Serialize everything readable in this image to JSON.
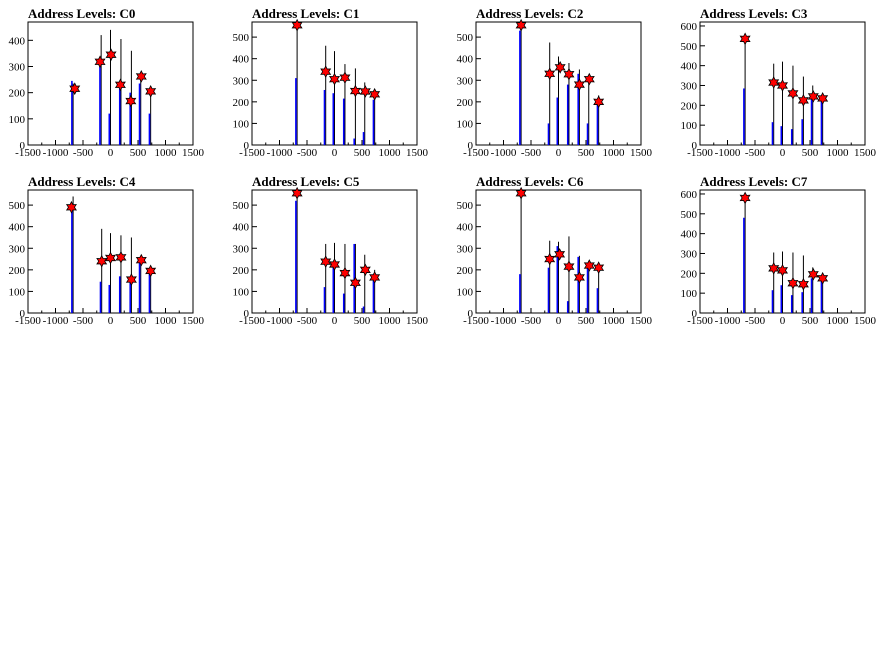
{
  "chart_data": [
    {
      "type": "bar",
      "title": "Address Levels: C0",
      "xlim": [
        -1500,
        1500
      ],
      "ylim": [
        0,
        470
      ],
      "xticks": [
        -1500,
        -1000,
        -500,
        0,
        500,
        1000,
        1500
      ],
      "xtick_labels": [
        "-1500",
        "-1000",
        "-500",
        "0",
        "500",
        "1000",
        "1500"
      ],
      "yticks": [
        0,
        100,
        200,
        300,
        400
      ],
      "ytick_labels": [
        "0",
        "100",
        "200",
        "300",
        "400"
      ],
      "spikes": [
        {
          "x": -680,
          "blue": 245,
          "black": 235
        },
        {
          "x": -170,
          "blue": 300,
          "black": 420
        },
        {
          "x": 0,
          "blue": 120,
          "black": 440
        },
        {
          "x": 190,
          "blue": 215,
          "black": 405
        },
        {
          "x": 380,
          "blue": 200,
          "black": 360
        },
        {
          "x": 550,
          "blue": 235,
          "black": 270
        },
        {
          "x": 730,
          "blue": 120,
          "black": 205
        }
      ],
      "markers": [
        {
          "x": -650,
          "y": 215
        },
        {
          "x": -190,
          "y": 318
        },
        {
          "x": 10,
          "y": 345
        },
        {
          "x": 180,
          "y": 230
        },
        {
          "x": 370,
          "y": 168
        },
        {
          "x": 560,
          "y": 262
        },
        {
          "x": 730,
          "y": 205
        }
      ]
    },
    {
      "type": "bar",
      "title": "Address Levels: C1",
      "xlim": [
        -1500,
        1500
      ],
      "ylim": [
        0,
        570
      ],
      "xticks": [
        -1500,
        -1000,
        -500,
        0,
        500,
        1000,
        1500
      ],
      "xtick_labels": [
        "-1500",
        "-1000",
        "-500",
        "0",
        "500",
        "1000",
        "1500"
      ],
      "yticks": [
        0,
        100,
        200,
        300,
        400,
        500
      ],
      "ytick_labels": [
        "0",
        "100",
        "200",
        "300",
        "400",
        "500"
      ],
      "spikes": [
        {
          "x": -680,
          "blue": 310,
          "black": 560
        },
        {
          "x": -160,
          "blue": 255,
          "black": 460
        },
        {
          "x": 0,
          "blue": 240,
          "black": 435
        },
        {
          "x": 190,
          "blue": 215,
          "black": 375
        },
        {
          "x": 380,
          "blue": 30,
          "black": 355
        },
        {
          "x": 550,
          "blue": 60,
          "black": 290
        },
        {
          "x": 730,
          "blue": 210,
          "black": 240
        }
      ],
      "markers": [
        {
          "x": -680,
          "y": 555
        },
        {
          "x": -160,
          "y": 340
        },
        {
          "x": 0,
          "y": 305
        },
        {
          "x": 190,
          "y": 312
        },
        {
          "x": 380,
          "y": 250
        },
        {
          "x": 560,
          "y": 248
        },
        {
          "x": 730,
          "y": 235
        }
      ]
    },
    {
      "type": "bar",
      "title": "Address Levels: C2",
      "xlim": [
        -1500,
        1500
      ],
      "ylim": [
        0,
        570
      ],
      "xticks": [
        -1500,
        -1000,
        -500,
        0,
        500,
        1000,
        1500
      ],
      "xtick_labels": [
        "-1500",
        "-1000",
        "-500",
        "0",
        "500",
        "1000",
        "1500"
      ],
      "yticks": [
        0,
        100,
        200,
        300,
        400,
        500
      ],
      "ytick_labels": [
        "0",
        "100",
        "200",
        "300",
        "400",
        "500"
      ],
      "spikes": [
        {
          "x": -680,
          "blue": 530,
          "black": 560
        },
        {
          "x": -160,
          "blue": 100,
          "black": 475
        },
        {
          "x": 0,
          "blue": 220,
          "black": 410
        },
        {
          "x": 190,
          "blue": 280,
          "black": 380
        },
        {
          "x": 380,
          "blue": 330,
          "black": 350
        },
        {
          "x": 550,
          "blue": 100,
          "black": 320
        },
        {
          "x": 730,
          "blue": 210,
          "black": 230
        }
      ],
      "markers": [
        {
          "x": -680,
          "y": 555
        },
        {
          "x": -160,
          "y": 330
        },
        {
          "x": 30,
          "y": 360
        },
        {
          "x": 190,
          "y": 328
        },
        {
          "x": 380,
          "y": 280
        },
        {
          "x": 560,
          "y": 305
        },
        {
          "x": 730,
          "y": 200
        }
      ]
    },
    {
      "type": "bar",
      "title": "Address Levels: C3",
      "xlim": [
        -1500,
        1500
      ],
      "ylim": [
        0,
        620
      ],
      "xticks": [
        -1500,
        -1000,
        -500,
        0,
        500,
        1000,
        1500
      ],
      "xtick_labels": [
        "-1500",
        "-1000",
        "-500",
        "0",
        "500",
        "1000",
        "1500"
      ],
      "yticks": [
        0,
        100,
        200,
        300,
        400,
        500,
        600
      ],
      "ytick_labels": [
        "0",
        "100",
        "200",
        "300",
        "400",
        "500",
        "600"
      ],
      "spikes": [
        {
          "x": -680,
          "blue": 285,
          "black": 560
        },
        {
          "x": -160,
          "blue": 115,
          "black": 410
        },
        {
          "x": 0,
          "blue": 95,
          "black": 420
        },
        {
          "x": 190,
          "blue": 80,
          "black": 400
        },
        {
          "x": 380,
          "blue": 130,
          "black": 345
        },
        {
          "x": 550,
          "blue": 240,
          "black": 300
        },
        {
          "x": 730,
          "blue": 240,
          "black": 245
        }
      ],
      "markers": [
        {
          "x": -680,
          "y": 535
        },
        {
          "x": -160,
          "y": 315
        },
        {
          "x": 0,
          "y": 300
        },
        {
          "x": 190,
          "y": 260
        },
        {
          "x": 380,
          "y": 225
        },
        {
          "x": 560,
          "y": 245
        },
        {
          "x": 730,
          "y": 235
        }
      ]
    },
    {
      "type": "bar",
      "title": "Address Levels: C4",
      "xlim": [
        -1500,
        1500
      ],
      "ylim": [
        0,
        570
      ],
      "xticks": [
        -1500,
        -1000,
        -500,
        0,
        500,
        1000,
        1500
      ],
      "xtick_labels": [
        "-1500",
        "-1000",
        "-500",
        "0",
        "500",
        "1000",
        "1500"
      ],
      "yticks": [
        0,
        100,
        200,
        300,
        400,
        500
      ],
      "ytick_labels": [
        "0",
        "100",
        "200",
        "300",
        "400",
        "500"
      ],
      "spikes": [
        {
          "x": -680,
          "blue": 500,
          "black": 540
        },
        {
          "x": -160,
          "blue": 145,
          "black": 390
        },
        {
          "x": 0,
          "blue": 130,
          "black": 370
        },
        {
          "x": 190,
          "blue": 170,
          "black": 360
        },
        {
          "x": 380,
          "blue": 165,
          "black": 350
        },
        {
          "x": 550,
          "blue": 250,
          "black": 260
        },
        {
          "x": 730,
          "blue": 190,
          "black": 200
        }
      ],
      "markers": [
        {
          "x": -710,
          "y": 490
        },
        {
          "x": -160,
          "y": 240
        },
        {
          "x": 0,
          "y": 255
        },
        {
          "x": 190,
          "y": 258
        },
        {
          "x": 380,
          "y": 155
        },
        {
          "x": 560,
          "y": 245
        },
        {
          "x": 730,
          "y": 195
        }
      ]
    },
    {
      "type": "bar",
      "title": "Address Levels: C5",
      "xlim": [
        -1500,
        1500
      ],
      "ylim": [
        0,
        570
      ],
      "xticks": [
        -1500,
        -1000,
        -500,
        0,
        500,
        1000,
        1500
      ],
      "xtick_labels": [
        "-1500",
        "-1000",
        "-500",
        "0",
        "500",
        "1000",
        "1500"
      ],
      "yticks": [
        0,
        100,
        200,
        300,
        400,
        500
      ],
      "ytick_labels": [
        "0",
        "100",
        "200",
        "300",
        "400",
        "500"
      ],
      "spikes": [
        {
          "x": -680,
          "blue": 520,
          "black": 560
        },
        {
          "x": -160,
          "blue": 120,
          "black": 320
        },
        {
          "x": 0,
          "blue": 230,
          "black": 325
        },
        {
          "x": 190,
          "blue": 90,
          "black": 320
        },
        {
          "x": 380,
          "blue": 320,
          "black": 320
        },
        {
          "x": 550,
          "blue": 30,
          "black": 270
        },
        {
          "x": 730,
          "blue": 180,
          "black": 200
        }
      ],
      "markers": [
        {
          "x": -680,
          "y": 555
        },
        {
          "x": -160,
          "y": 238
        },
        {
          "x": 0,
          "y": 225
        },
        {
          "x": 190,
          "y": 185
        },
        {
          "x": 380,
          "y": 140
        },
        {
          "x": 560,
          "y": 200
        },
        {
          "x": 730,
          "y": 165
        }
      ]
    },
    {
      "type": "bar",
      "title": "Address Levels: C6",
      "xlim": [
        -1500,
        1500
      ],
      "ylim": [
        0,
        570
      ],
      "xticks": [
        -1500,
        -1000,
        -500,
        0,
        500,
        1000,
        1500
      ],
      "xtick_labels": [
        "-1500",
        "-1000",
        "-500",
        "0",
        "500",
        "1000",
        "1500"
      ],
      "yticks": [
        0,
        100,
        200,
        300,
        400,
        500
      ],
      "ytick_labels": [
        "0",
        "100",
        "200",
        "300",
        "400",
        "500"
      ],
      "spikes": [
        {
          "x": -680,
          "blue": 180,
          "black": 560
        },
        {
          "x": -160,
          "blue": 210,
          "black": 335
        },
        {
          "x": 0,
          "blue": 310,
          "black": 330
        },
        {
          "x": 190,
          "blue": 55,
          "black": 355
        },
        {
          "x": 380,
          "blue": 260,
          "black": 265
        },
        {
          "x": 550,
          "blue": 210,
          "black": 240
        },
        {
          "x": 730,
          "blue": 115,
          "black": 210
        }
      ],
      "markers": [
        {
          "x": -680,
          "y": 555
        },
        {
          "x": -160,
          "y": 250
        },
        {
          "x": 20,
          "y": 272
        },
        {
          "x": 190,
          "y": 215
        },
        {
          "x": 380,
          "y": 165
        },
        {
          "x": 560,
          "y": 220
        },
        {
          "x": 730,
          "y": 210
        }
      ]
    },
    {
      "type": "bar",
      "title": "Address Levels: C7",
      "xlim": [
        -1500,
        1500
      ],
      "ylim": [
        0,
        620
      ],
      "xticks": [
        -1500,
        -1000,
        -500,
        0,
        500,
        1000,
        1500
      ],
      "xtick_labels": [
        "-1500",
        "-1000",
        "-500",
        "0",
        "500",
        "1000",
        "1500"
      ],
      "yticks": [
        0,
        100,
        200,
        300,
        400,
        500,
        600
      ],
      "ytick_labels": [
        "0",
        "100",
        "200",
        "300",
        "400",
        "500",
        "600"
      ],
      "spikes": [
        {
          "x": -680,
          "blue": 480,
          "black": 600
        },
        {
          "x": -160,
          "blue": 115,
          "black": 305
        },
        {
          "x": 0,
          "blue": 140,
          "black": 310
        },
        {
          "x": 190,
          "blue": 90,
          "black": 305
        },
        {
          "x": 380,
          "blue": 105,
          "black": 290
        },
        {
          "x": 550,
          "blue": 175,
          "black": 230
        },
        {
          "x": 730,
          "blue": 175,
          "black": 190
        }
      ],
      "markers": [
        {
          "x": -680,
          "y": 580
        },
        {
          "x": -160,
          "y": 225
        },
        {
          "x": 0,
          "y": 215
        },
        {
          "x": 190,
          "y": 150
        },
        {
          "x": 380,
          "y": 145
        },
        {
          "x": 560,
          "y": 195
        },
        {
          "x": 730,
          "y": 175
        }
      ]
    }
  ],
  "colors": {
    "frame": "#000000",
    "spike_black": "#000000",
    "spike_blue": "#0000ff",
    "marker": "#ff0000",
    "marker_outline": "#000000"
  }
}
